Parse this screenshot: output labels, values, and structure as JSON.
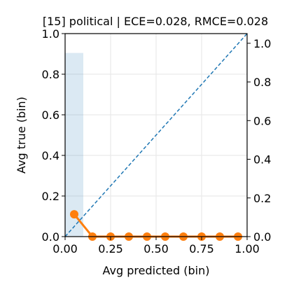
{
  "chart_data": {
    "type": "line",
    "title": "[15] political | ECE=0.028, RMCE=0.028",
    "xlabel": "Avg predicted (bin)",
    "ylabel": "Avg true (bin)",
    "xlim": [
      0,
      1
    ],
    "ylim": [
      0,
      1
    ],
    "ylim_right": [
      0,
      1.05
    ],
    "x_ticks": [
      "0.00",
      "0.25",
      "0.50",
      "0.75",
      "1.00"
    ],
    "y_ticks": [
      "0.0",
      "0.2",
      "0.4",
      "0.6",
      "0.8",
      "1.0"
    ],
    "y_right_ticks": [
      "0.0",
      "0.2",
      "0.4",
      "0.6",
      "0.8",
      "1.0"
    ],
    "grid": true,
    "diagonal": {
      "x": [
        0,
        1
      ],
      "y": [
        0,
        1
      ],
      "color": "#1f77b4"
    },
    "histogram": {
      "color": "#1f77b4",
      "bins": [
        {
          "x0": 0.0,
          "x1": 0.1,
          "value": 0.95
        }
      ]
    },
    "series": [
      {
        "color": "#ff7f0e",
        "x": [
          0.05,
          0.15,
          0.25,
          0.35,
          0.45,
          0.55,
          0.65,
          0.75,
          0.85,
          0.95
        ],
        "y": [
          0.11,
          0.0,
          0.0,
          0.0,
          0.0,
          0.0,
          0.0,
          0.0,
          0.0,
          0.0
        ]
      }
    ]
  }
}
